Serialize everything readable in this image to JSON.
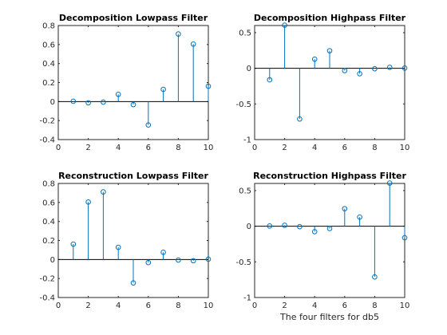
{
  "chart_data": [
    {
      "type": "stem",
      "title": "Decomposition Lowpass Filter",
      "xlabel": "",
      "x": [
        1,
        2,
        3,
        4,
        5,
        6,
        7,
        8,
        9,
        10
      ],
      "values": [
        0.003,
        -0.013,
        -0.006,
        0.076,
        -0.032,
        -0.246,
        0.128,
        0.711,
        0.605,
        0.162
      ],
      "xlim": [
        0,
        10
      ],
      "ylim": [
        -0.4,
        0.8
      ],
      "xticks": [
        0,
        2,
        4,
        6,
        8,
        10
      ],
      "yticks": [
        -0.4,
        -0.2,
        0,
        0.2,
        0.4,
        0.6,
        0.8
      ],
      "color": "#0072BD"
    },
    {
      "type": "stem",
      "title": "Decomposition Highpass Filter",
      "xlabel": "",
      "x": [
        1,
        2,
        3,
        4,
        5,
        6,
        7,
        8,
        9,
        10
      ],
      "values": [
        -0.162,
        0.605,
        -0.711,
        0.128,
        0.246,
        -0.032,
        -0.076,
        -0.006,
        0.013,
        0.003
      ],
      "xlim": [
        0,
        10
      ],
      "ylim": [
        -1,
        0.6
      ],
      "xticks": [
        0,
        2,
        4,
        6,
        8,
        10
      ],
      "yticks": [
        -1,
        -0.5,
        0,
        0.5
      ],
      "color": "#0072BD"
    },
    {
      "type": "stem",
      "title": "Reconstruction Lowpass Filter",
      "xlabel": "",
      "x": [
        1,
        2,
        3,
        4,
        5,
        6,
        7,
        8,
        9,
        10
      ],
      "values": [
        0.162,
        0.605,
        0.711,
        0.128,
        -0.246,
        -0.032,
        0.076,
        -0.006,
        -0.013,
        0.003
      ],
      "xlim": [
        0,
        10
      ],
      "ylim": [
        -0.4,
        0.8
      ],
      "xticks": [
        0,
        2,
        4,
        6,
        8,
        10
      ],
      "yticks": [
        -0.4,
        -0.2,
        0,
        0.2,
        0.4,
        0.6,
        0.8
      ],
      "color": "#0072BD"
    },
    {
      "type": "stem",
      "title": "Reconstruction Highpass Filter",
      "xlabel": "The four filters for db5",
      "x": [
        1,
        2,
        3,
        4,
        5,
        6,
        7,
        8,
        9,
        10
      ],
      "values": [
        0.003,
        0.013,
        -0.006,
        -0.076,
        -0.032,
        0.246,
        0.128,
        -0.711,
        0.605,
        -0.162
      ],
      "xlim": [
        0,
        10
      ],
      "ylim": [
        -1,
        0.6
      ],
      "xticks": [
        0,
        2,
        4,
        6,
        8,
        10
      ],
      "yticks": [
        -1,
        -0.5,
        0,
        0.5
      ],
      "color": "#0072BD"
    }
  ]
}
